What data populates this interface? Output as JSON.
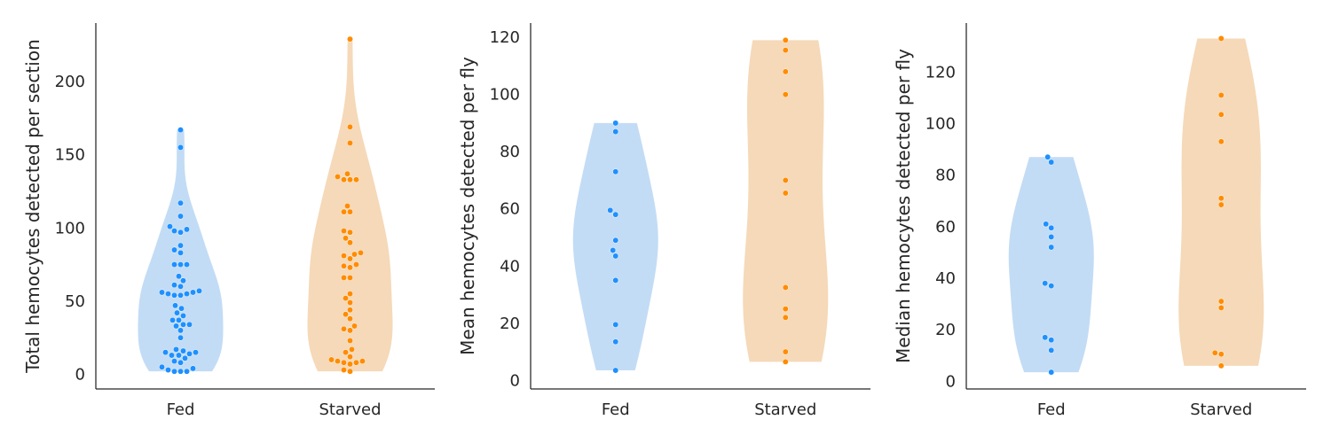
{
  "colors": {
    "fed_point": "#1e90ff",
    "fed_violin": "#c3dcf5",
    "starved_point": "#ff8c00",
    "starved_violin": "#f5d9b8",
    "axis": "#262626"
  },
  "chart_data": [
    {
      "type": "violin-swarm",
      "ylabel": "Total hemocytes detected per section",
      "categories": [
        "Fed",
        "Starved"
      ],
      "ylim": [
        -10,
        240
      ],
      "yticks": [
        0,
        50,
        100,
        150,
        200
      ],
      "series": [
        {
          "name": "Fed",
          "values": [
            167,
            155,
            117,
            108,
            101,
            99,
            98,
            97,
            88,
            85,
            83,
            75,
            75,
            75,
            67,
            64,
            61,
            60,
            57,
            56,
            56,
            55,
            55,
            54,
            54,
            47,
            45,
            42,
            40,
            37,
            37,
            34,
            34,
            33,
            30,
            25,
            17,
            16,
            15,
            15,
            14,
            13,
            13,
            11,
            9,
            8,
            5,
            4,
            3,
            2,
            2,
            2
          ]
        },
        {
          "name": "Starved",
          "values": [
            229,
            169,
            158,
            137,
            135,
            133,
            133,
            133,
            115,
            111,
            111,
            98,
            97,
            93,
            90,
            83,
            82,
            81,
            79,
            75,
            74,
            73,
            66,
            66,
            55,
            52,
            49,
            44,
            41,
            38,
            33,
            31,
            30,
            23,
            17,
            15,
            12,
            10,
            9,
            9,
            8,
            8,
            7,
            3,
            2
          ]
        }
      ]
    },
    {
      "type": "violin-swarm",
      "ylabel": "Mean hemocytes detected per fly",
      "categories": [
        "Fed",
        "Starved"
      ],
      "ylim": [
        -3,
        125
      ],
      "yticks": [
        0,
        20,
        40,
        60,
        80,
        100,
        120
      ],
      "series": [
        {
          "name": "Fed",
          "values": [
            90,
            87,
            73,
            59.5,
            58,
            49,
            45.5,
            43.5,
            35,
            19.5,
            13.5,
            3.5
          ]
        },
        {
          "name": "Starved",
          "values": [
            119,
            115.5,
            108,
            100,
            70,
            65.5,
            32.5,
            25,
            22,
            10,
            6.5
          ]
        }
      ]
    },
    {
      "type": "violin-swarm",
      "ylabel": "Median hemocytes detected per fly",
      "categories": [
        "Fed",
        "Starved"
      ],
      "ylim": [
        -3,
        139
      ],
      "yticks": [
        0,
        20,
        40,
        60,
        80,
        100,
        120
      ],
      "series": [
        {
          "name": "Fed",
          "values": [
            87,
            85,
            61,
            59.5,
            56,
            52,
            38,
            37,
            17,
            16,
            12,
            3.5
          ]
        },
        {
          "name": "Starved",
          "values": [
            133,
            111,
            103.5,
            93,
            71,
            68.5,
            31,
            28.5,
            11,
            10.5,
            6
          ]
        }
      ]
    }
  ]
}
